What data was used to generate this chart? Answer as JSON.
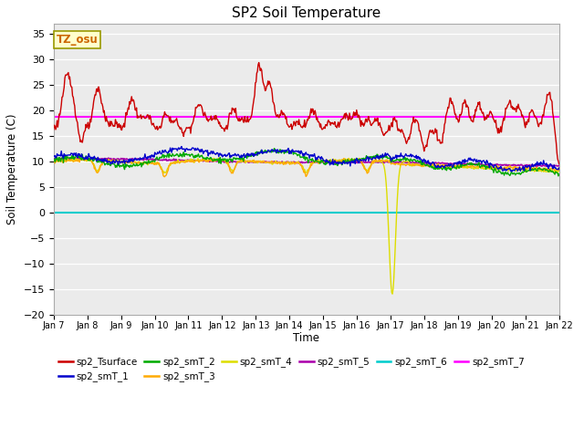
{
  "title": "SP2 Soil Temperature",
  "xlabel": "Time",
  "ylabel": "Soil Temperature (C)",
  "ylim": [
    -20,
    37
  ],
  "yticks": [
    -20,
    -15,
    -10,
    -5,
    0,
    5,
    10,
    15,
    20,
    25,
    30,
    35
  ],
  "bg_color": "#ffffff",
  "plot_bg_color": "#ebebeb",
  "line_colors": {
    "sp2_Tsurface": "#cc0000",
    "sp2_smT_1": "#0000cc",
    "sp2_smT_2": "#00aa00",
    "sp2_smT_3": "#ffaa00",
    "sp2_smT_4": "#dddd00",
    "sp2_smT_5": "#aa00aa",
    "sp2_smT_6": "#00cccc",
    "sp2_smT_7": "#ff00ff"
  },
  "tz_label": "TZ_osu",
  "tz_box_color": "#ffffcc",
  "tz_box_edge": "#999900",
  "smT7_value": 18.8,
  "smT6_value": -0.1
}
